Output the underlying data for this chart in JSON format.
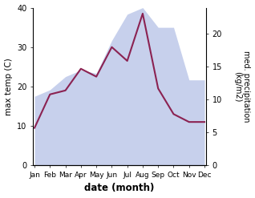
{
  "months": [
    "Jan",
    "Feb",
    "Mar",
    "Apr",
    "May",
    "Jun",
    "Jul",
    "Aug",
    "Sep",
    "Oct",
    "Nov",
    "Dec"
  ],
  "month_positions": [
    0,
    1,
    2,
    3,
    4,
    5,
    6,
    7,
    8,
    9,
    10,
    11
  ],
  "temp_max": [
    9.5,
    18.0,
    19.0,
    24.5,
    22.5,
    30.0,
    26.5,
    38.5,
    19.5,
    13.0,
    11.0,
    11.0
  ],
  "precip": [
    10.5,
    11.5,
    13.5,
    14.5,
    14.0,
    19.0,
    23.0,
    24.0,
    21.0,
    21.0,
    13.0,
    13.0
  ],
  "temp_ylim": [
    0,
    40
  ],
  "precip_ylim": [
    0,
    24
  ],
  "temp_yticks": [
    0,
    10,
    20,
    30,
    40
  ],
  "precip_yticks": [
    0,
    5,
    10,
    15,
    20
  ],
  "temp_color": "#8B2252",
  "precip_fill_color": "#99AADD",
  "precip_fill_alpha": 0.55,
  "xlabel": "date (month)",
  "ylabel_left": "max temp (C)",
  "ylabel_right": "med. precipitation\n(kg/m2)",
  "background_color": "#ffffff"
}
